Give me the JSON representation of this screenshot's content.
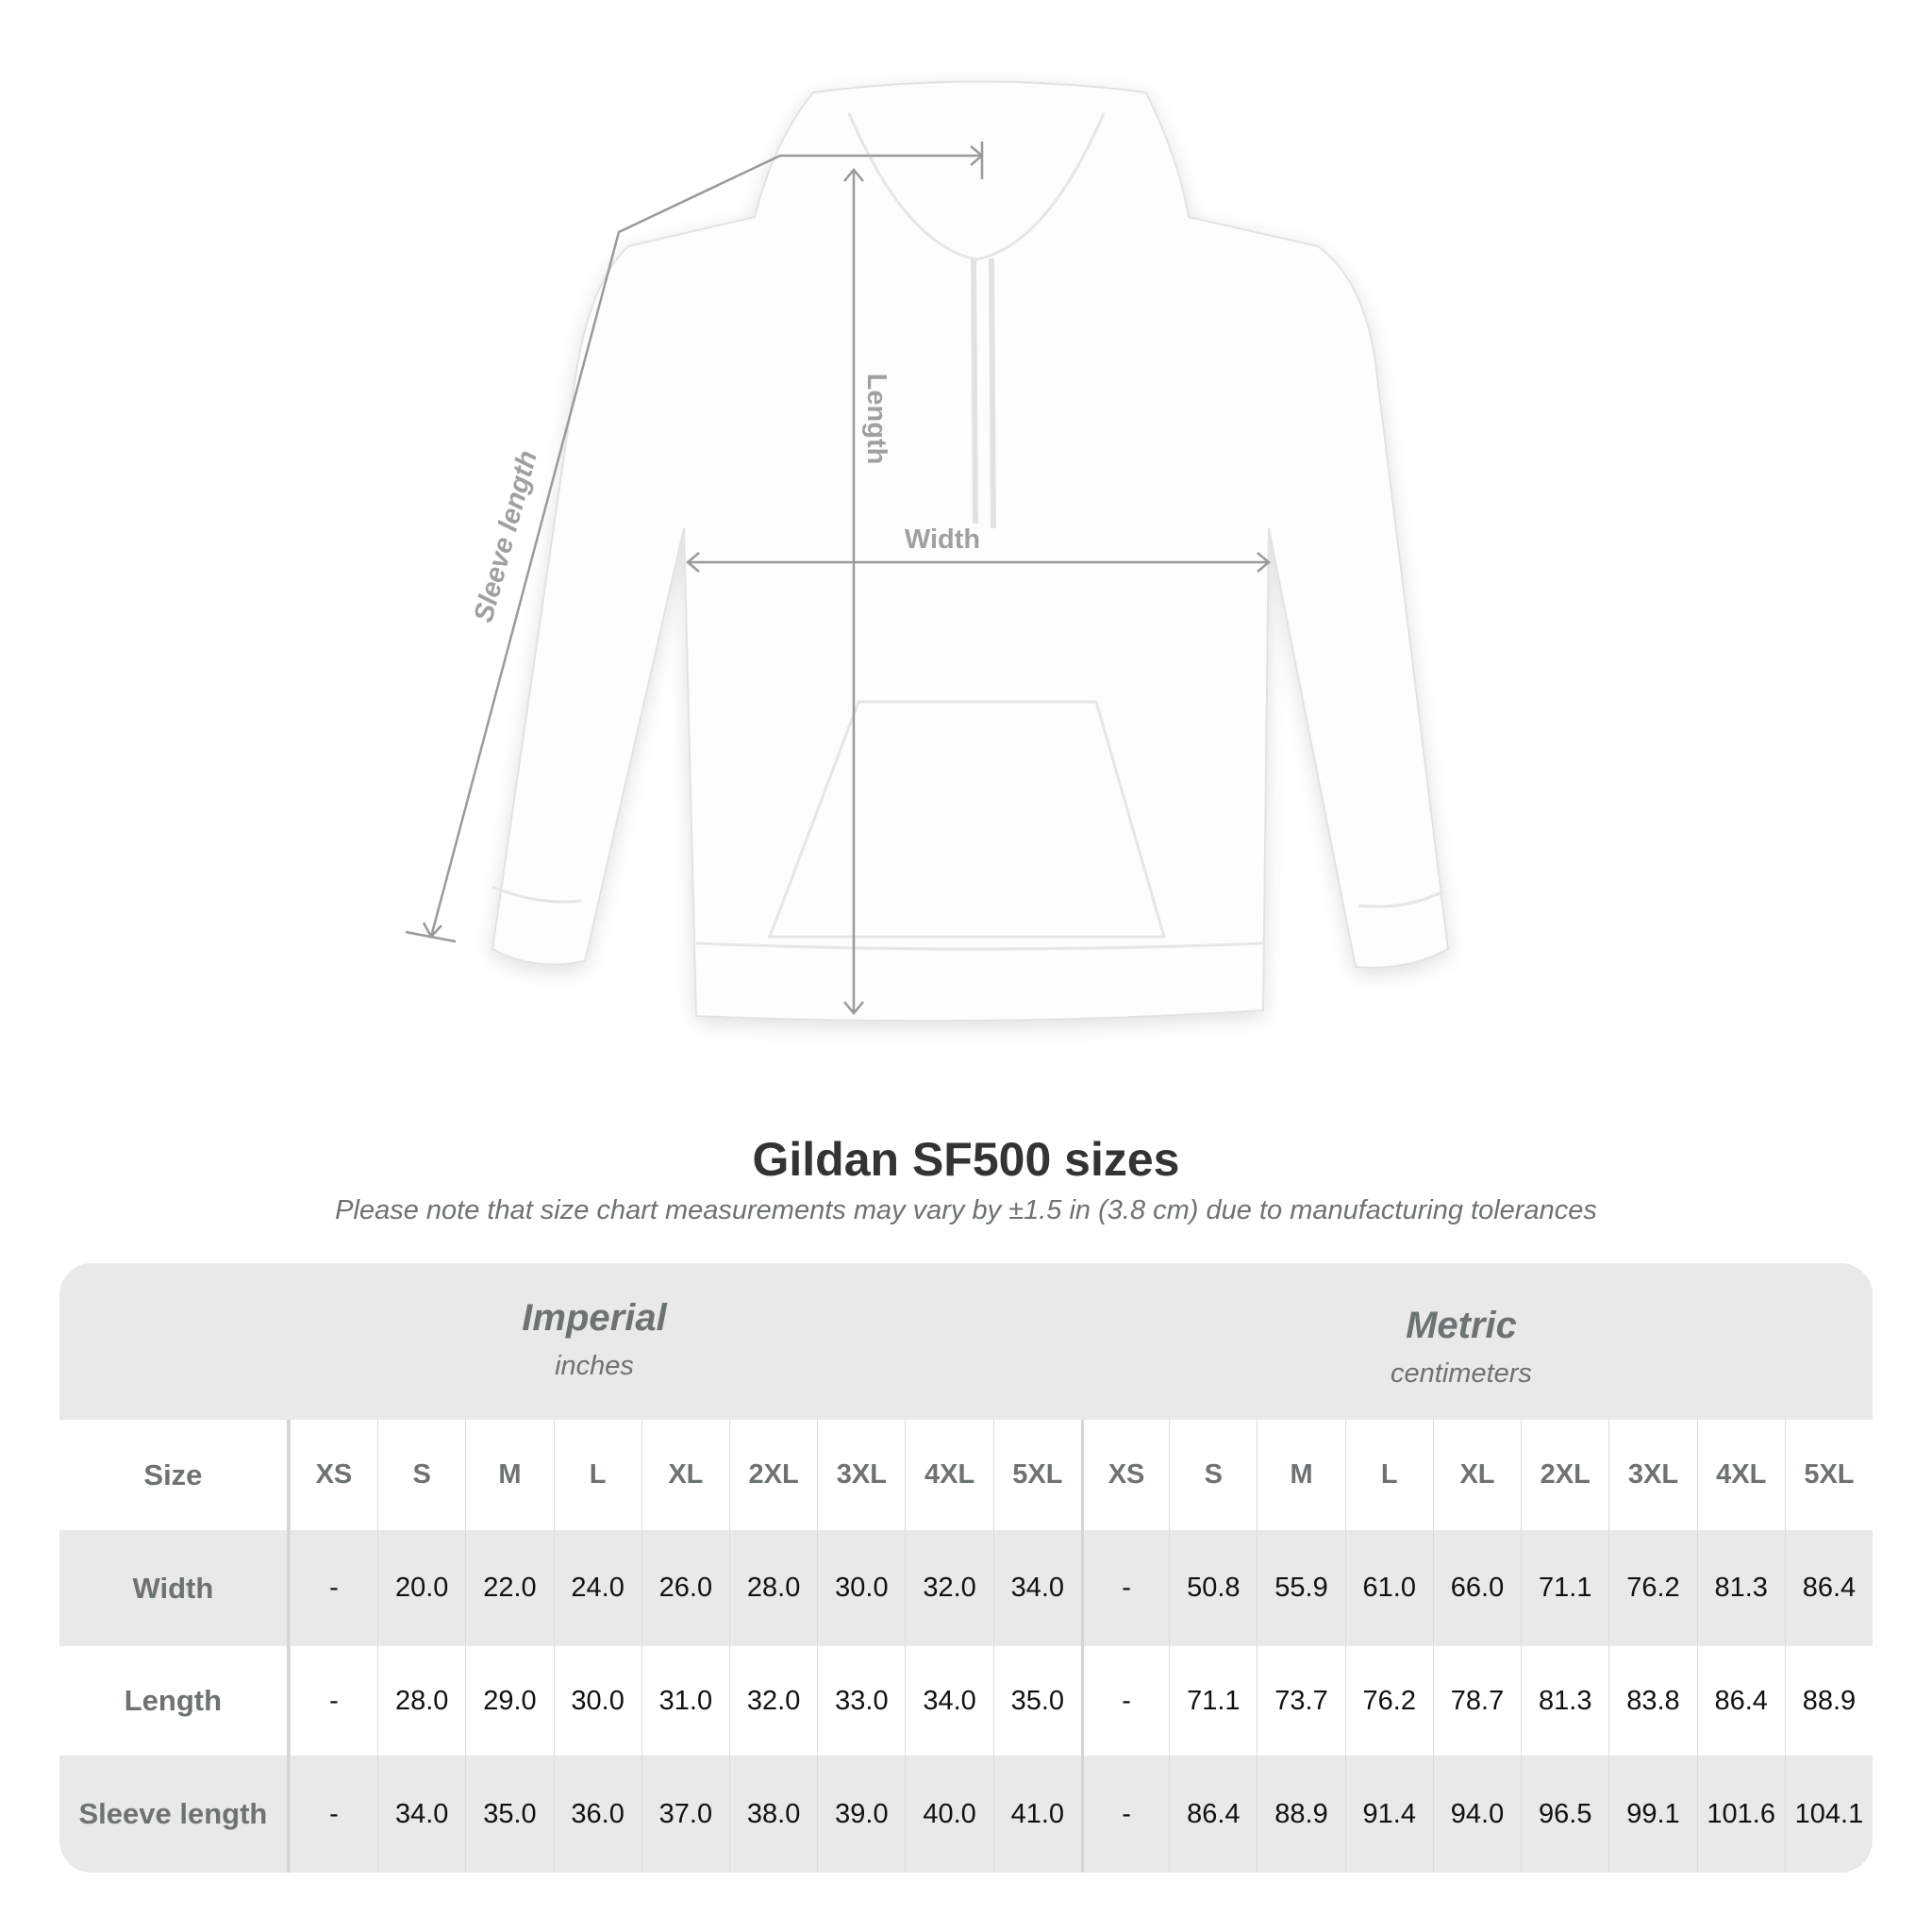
{
  "diagram": {
    "labels": {
      "width": "Width",
      "length": "Length",
      "sleeve_length": "Sleeve length"
    },
    "garment_color": "#ffffff",
    "line_color": "#9a9a9a"
  },
  "title": "Gildan SF500 sizes",
  "note": "Please note that size chart measurements may vary by ±1.5 in (3.8 cm) due to manufacturing tolerances",
  "table": {
    "imperial": {
      "name": "Imperial",
      "unit": "inches"
    },
    "metric": {
      "name": "Metric",
      "unit": "centimeters"
    },
    "size_label": "Size",
    "sizes": [
      "XS",
      "S",
      "M",
      "L",
      "XL",
      "2XL",
      "3XL",
      "4XL",
      "5XL"
    ],
    "rows": [
      {
        "label": "Width",
        "imperial": [
          "-",
          "20.0",
          "22.0",
          "24.0",
          "26.0",
          "28.0",
          "30.0",
          "32.0",
          "34.0"
        ],
        "metric": [
          "-",
          "50.8",
          "55.9",
          "61.0",
          "66.0",
          "71.1",
          "76.2",
          "81.3",
          "86.4"
        ]
      },
      {
        "label": "Length",
        "imperial": [
          "-",
          "28.0",
          "29.0",
          "30.0",
          "31.0",
          "32.0",
          "33.0",
          "34.0",
          "35.0"
        ],
        "metric": [
          "-",
          "71.1",
          "73.7",
          "76.2",
          "78.7",
          "81.3",
          "83.8",
          "86.4",
          "88.9"
        ]
      },
      {
        "label": "Sleeve length",
        "imperial": [
          "-",
          "34.0",
          "35.0",
          "36.0",
          "37.0",
          "38.0",
          "39.0",
          "40.0",
          "41.0"
        ],
        "metric": [
          "-",
          "86.4",
          "88.9",
          "91.4",
          "94.0",
          "96.5",
          "99.1",
          "101.6",
          "104.1"
        ]
      }
    ]
  }
}
